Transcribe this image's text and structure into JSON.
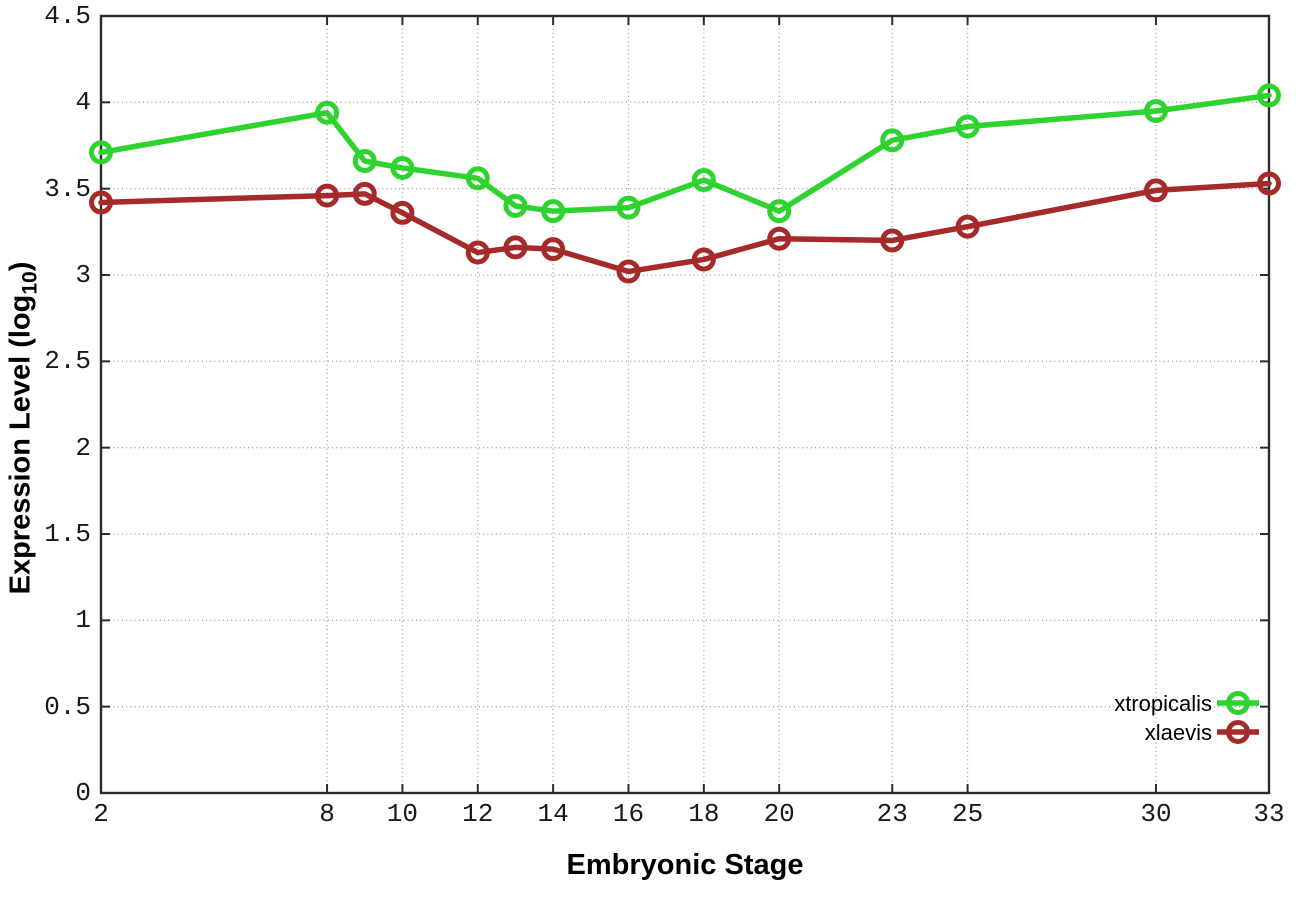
{
  "chart_data": {
    "type": "line",
    "title": "",
    "xlabel": "Embryonic Stage",
    "ylabel": "Expression Level (log10)",
    "ylabel_parts": {
      "prefix": "Expression Level (log",
      "sub": "10",
      "suffix": ")"
    },
    "xlim": [
      2,
      33
    ],
    "ylim": [
      0,
      4.5
    ],
    "x_ticks": [
      2,
      8,
      10,
      12,
      14,
      16,
      18,
      20,
      23,
      25,
      30,
      33
    ],
    "y_ticks": [
      0,
      0.5,
      1,
      1.5,
      2,
      2.5,
      3,
      3.5,
      4,
      4.5
    ],
    "grid": true,
    "legend_position": "bottom-right",
    "x": [
      2,
      8,
      9,
      10,
      12,
      13,
      14,
      16,
      18,
      20,
      23,
      25,
      30,
      33
    ],
    "series": [
      {
        "name": "xtropicalis",
        "color": "#2fd32f",
        "values": [
          3.71,
          3.94,
          3.66,
          3.62,
          3.56,
          3.4,
          3.37,
          3.39,
          3.55,
          3.37,
          3.78,
          3.86,
          3.95,
          4.04
        ]
      },
      {
        "name": "xlaevis",
        "color": "#a52a2a",
        "values": [
          3.42,
          3.46,
          3.47,
          3.36,
          3.13,
          3.16,
          3.15,
          3.02,
          3.09,
          3.21,
          3.2,
          3.28,
          3.49,
          3.53
        ]
      }
    ],
    "axis_color": "#2b2b2b",
    "grid_color": "#9f9f9f",
    "text_color": "#1a1a1a"
  }
}
